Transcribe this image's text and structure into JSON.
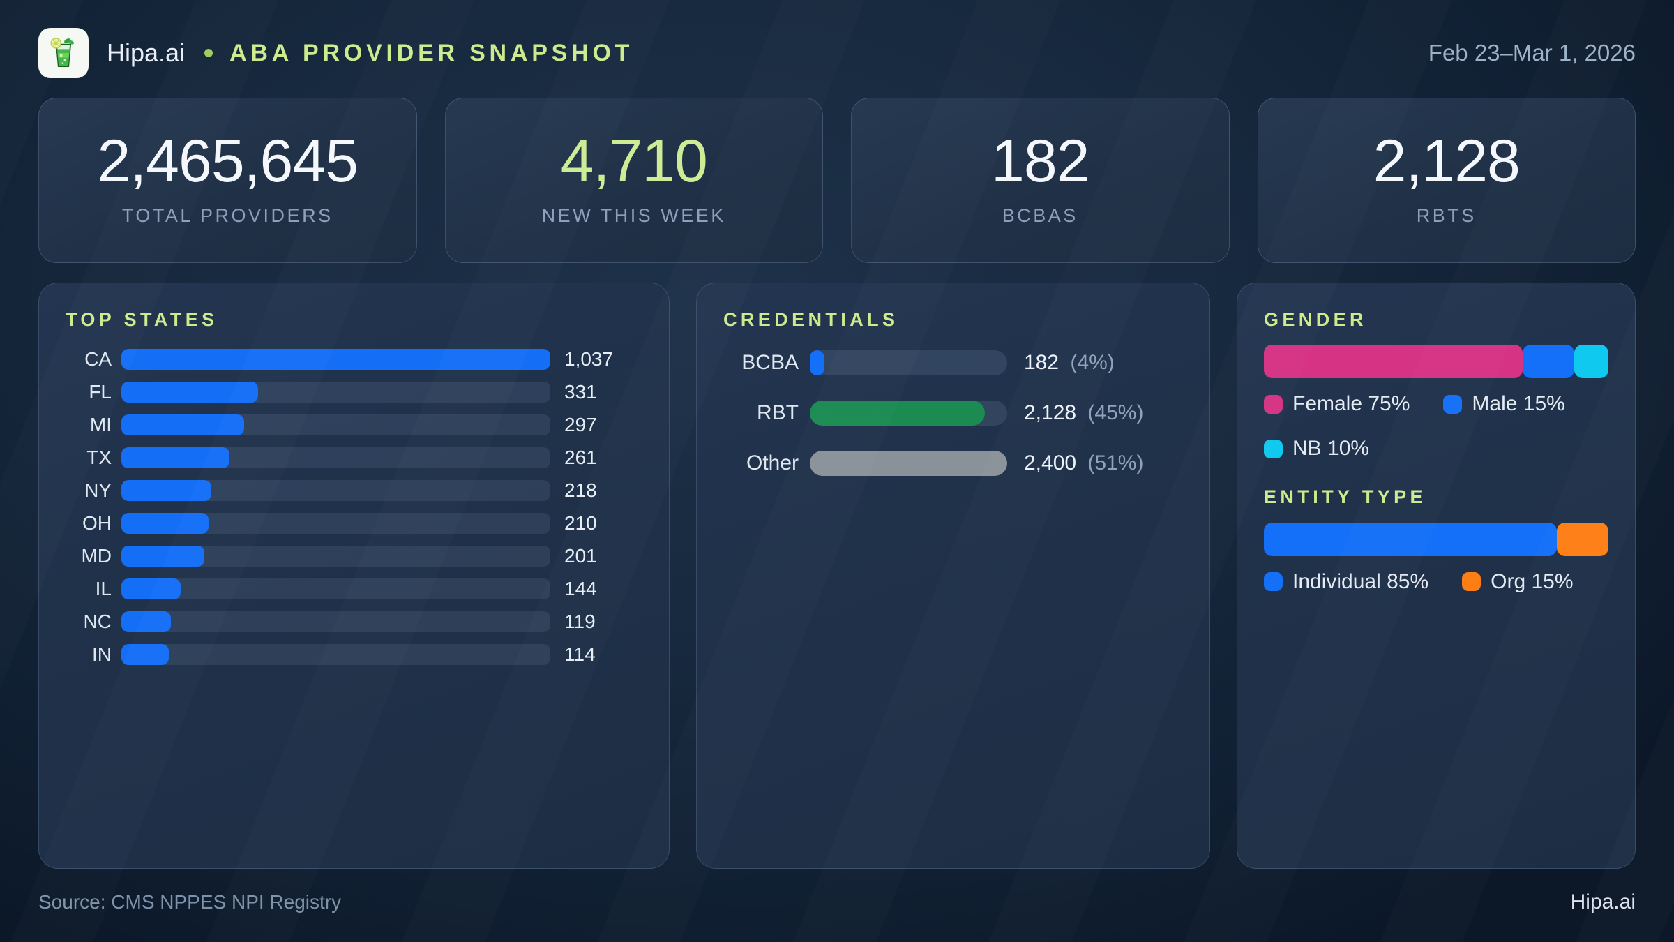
{
  "header": {
    "brand": "Hipa.ai",
    "logo_icon": "mojito-glass",
    "title": "ABA PROVIDER SNAPSHOT",
    "date_range": "Feb 23–Mar 1, 2026"
  },
  "stats": [
    {
      "value": "2,465,645",
      "label": "TOTAL PROVIDERS",
      "accent": false
    },
    {
      "value": "4,710",
      "label": "NEW THIS WEEK",
      "accent": true
    },
    {
      "value": "182",
      "label": "BCBAS",
      "accent": false
    },
    {
      "value": "2,128",
      "label": "RBTS",
      "accent": false
    }
  ],
  "panels": {
    "top_states": {
      "title": "TOP STATES",
      "max": 1037,
      "bar_color": "#146ff6",
      "rows": [
        {
          "label": "CA",
          "value": 1037,
          "display": "1,037"
        },
        {
          "label": "FL",
          "value": 331,
          "display": "331"
        },
        {
          "label": "MI",
          "value": 297,
          "display": "297"
        },
        {
          "label": "TX",
          "value": 261,
          "display": "261"
        },
        {
          "label": "NY",
          "value": 218,
          "display": "218"
        },
        {
          "label": "OH",
          "value": 210,
          "display": "210"
        },
        {
          "label": "MD",
          "value": 201,
          "display": "201"
        },
        {
          "label": "IL",
          "value": 144,
          "display": "144"
        },
        {
          "label": "NC",
          "value": 119,
          "display": "119"
        },
        {
          "label": "IN",
          "value": 114,
          "display": "114"
        }
      ]
    },
    "credentials": {
      "title": "CREDENTIALS",
      "max": 2400,
      "rows": [
        {
          "label": "BCBA",
          "value": 182,
          "display": "182",
          "pct": "(4%)",
          "color": "#1470f8"
        },
        {
          "label": "RBT",
          "value": 2128,
          "display": "2,128",
          "pct": "(45%)",
          "color": "#1b8b52"
        },
        {
          "label": "Other",
          "value": 2400,
          "display": "2,400",
          "pct": "(51%)",
          "color": "#8a9199"
        }
      ]
    },
    "gender": {
      "title": "GENDER",
      "segments": [
        {
          "label": "Female",
          "pct": 75,
          "color": "#d63384",
          "legend": "Female 75%"
        },
        {
          "label": "Male",
          "pct": 15,
          "color": "#1470f8",
          "legend": "Male 15%"
        },
        {
          "label": "NB",
          "pct": 10,
          "color": "#0fc9ee",
          "legend": "NB 10%"
        }
      ]
    },
    "entity": {
      "title": "ENTITY TYPE",
      "segments": [
        {
          "label": "Individual",
          "pct": 85,
          "color": "#1470f8",
          "legend": "Individual 85%"
        },
        {
          "label": "Org",
          "pct": 15,
          "color": "#fd7e14",
          "legend": "Org 15%"
        }
      ]
    }
  },
  "footer": {
    "source": "Source: CMS NPPES NPI Registry",
    "brand": "Hipa.ai"
  },
  "colors": {
    "accent_green_text": "#cdeb8d",
    "stat_accent": "#cdec95",
    "bar_blue": "#146ff6",
    "bar_green": "#1b8b52",
    "bar_gray": "#8a9199",
    "pink": "#d63384",
    "cyan": "#0fc9ee",
    "orange": "#fd7e14",
    "background": "#13253a",
    "panel": "#20314a"
  },
  "chart_data": [
    {
      "type": "bar",
      "orientation": "horizontal",
      "title": "TOP STATES",
      "categories": [
        "CA",
        "FL",
        "MI",
        "TX",
        "NY",
        "OH",
        "MD",
        "IL",
        "NC",
        "IN"
      ],
      "values": [
        1037,
        331,
        297,
        261,
        218,
        210,
        201,
        144,
        119,
        114
      ],
      "value_labels": [
        "1,037",
        "331",
        "297",
        "261",
        "218",
        "210",
        "201",
        "144",
        "119",
        "114"
      ],
      "xlim": [
        0,
        1037
      ],
      "grid": false,
      "legend_position": "none"
    },
    {
      "type": "bar",
      "orientation": "horizontal",
      "title": "CREDENTIALS",
      "categories": [
        "BCBA",
        "RBT",
        "Other"
      ],
      "values": [
        182,
        2128,
        2400
      ],
      "value_labels": [
        "182 (4%)",
        "2,128 (45%)",
        "2,400 (51%)"
      ],
      "xlim": [
        0,
        2400
      ],
      "grid": false,
      "legend_position": "none"
    },
    {
      "type": "stacked-bar",
      "title": "GENDER",
      "unit": "%",
      "series": [
        {
          "name": "Female",
          "values": [
            75
          ]
        },
        {
          "name": "Male",
          "values": [
            15
          ]
        },
        {
          "name": "NB",
          "values": [
            10
          ]
        }
      ],
      "legend_position": "below"
    },
    {
      "type": "stacked-bar",
      "title": "ENTITY TYPE",
      "unit": "%",
      "series": [
        {
          "name": "Individual",
          "values": [
            85
          ]
        },
        {
          "name": "Org",
          "values": [
            15
          ]
        }
      ],
      "legend_position": "below"
    }
  ]
}
